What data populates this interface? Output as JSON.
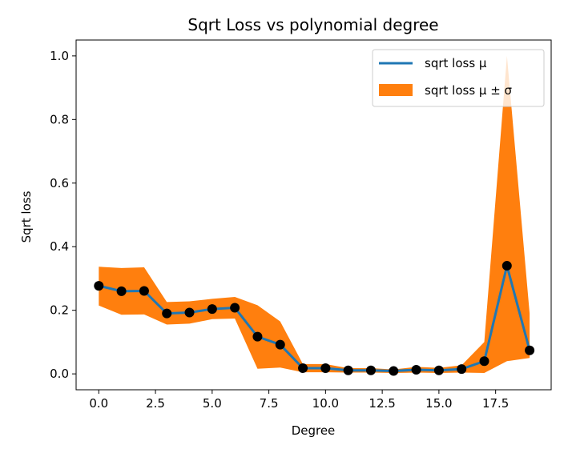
{
  "chart_data": {
    "type": "line",
    "title": "Sqrt Loss vs polynomial degree",
    "xlabel": "Degree",
    "ylabel": "Sqrt loss",
    "xlim": [
      -1,
      19.95
    ],
    "ylim": [
      -0.05,
      1.05
    ],
    "x_ticks": [
      0.0,
      2.5,
      5.0,
      7.5,
      10.0,
      12.5,
      15.0,
      17.5
    ],
    "x_tick_labels": [
      "0.0",
      "2.5",
      "5.0",
      "7.5",
      "10.0",
      "12.5",
      "15.0",
      "17.5"
    ],
    "y_ticks": [
      0.0,
      0.2,
      0.4,
      0.6,
      0.8,
      1.0
    ],
    "y_tick_labels": [
      "0.0",
      "0.2",
      "0.4",
      "0.6",
      "0.8",
      "1.0"
    ],
    "grid": false,
    "legend_position": "top-right",
    "x": [
      0,
      1,
      2,
      3,
      4,
      5,
      6,
      7,
      8,
      9,
      10,
      11,
      12,
      13,
      14,
      15,
      16,
      17,
      18,
      19
    ],
    "series": [
      {
        "name": "sqrt loss μ",
        "kind": "line",
        "color": "#1f77b4",
        "values": [
          0.277,
          0.26,
          0.261,
          0.19,
          0.193,
          0.204,
          0.208,
          0.117,
          0.092,
          0.018,
          0.018,
          0.011,
          0.011,
          0.009,
          0.013,
          0.011,
          0.015,
          0.04,
          0.34,
          0.074
        ]
      },
      {
        "name": "sqrt loss μ ± σ",
        "kind": "band",
        "color": "#ff7f0e",
        "lower": [
          0.215,
          0.186,
          0.187,
          0.155,
          0.158,
          0.172,
          0.174,
          0.016,
          0.02,
          0.005,
          0.005,
          0.004,
          0.004,
          0.003,
          0.004,
          0.003,
          0.004,
          0.003,
          0.04,
          0.05
        ],
        "upper": [
          0.337,
          0.333,
          0.335,
          0.226,
          0.228,
          0.236,
          0.242,
          0.216,
          0.165,
          0.031,
          0.031,
          0.018,
          0.018,
          0.014,
          0.022,
          0.019,
          0.027,
          0.1,
          1.0,
          0.19
        ]
      }
    ],
    "markers": {
      "color": "#000000",
      "values": [
        0.277,
        0.26,
        0.261,
        0.19,
        0.193,
        0.204,
        0.208,
        0.117,
        0.092,
        0.018,
        0.018,
        0.011,
        0.011,
        0.009,
        0.013,
        0.011,
        0.015,
        0.04,
        0.34,
        0.074
      ]
    }
  }
}
